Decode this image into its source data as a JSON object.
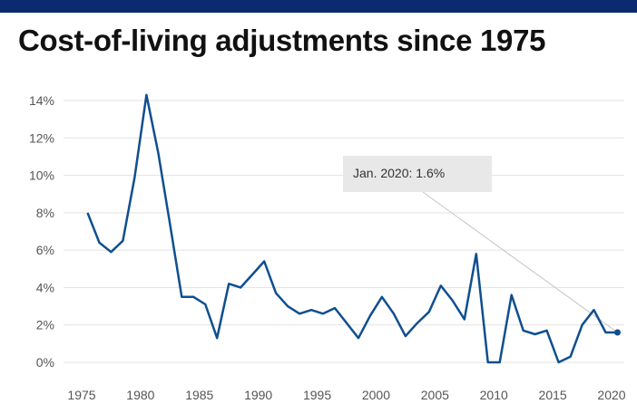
{
  "colors": {
    "top_bar": "#0c2b6e",
    "line": "#0f4f8f",
    "grid": "#e2e2e2",
    "annotation_bg": "#e8e8e8"
  },
  "chart_data": {
    "type": "line",
    "title": "Cost-of-living adjustments since 1975",
    "xlabel": "",
    "ylabel": "",
    "xlim": [
      1975,
      2021
    ],
    "ylim": [
      0,
      14
    ],
    "y_ticks": [
      0,
      2,
      4,
      6,
      8,
      10,
      12,
      14
    ],
    "y_tick_labels": [
      "0%",
      "2%",
      "4%",
      "6%",
      "8%",
      "10%",
      "12%",
      "14%"
    ],
    "x_ticks": [
      1975,
      1980,
      1985,
      1990,
      1995,
      2000,
      2005,
      2010,
      2015,
      2020
    ],
    "x_tick_labels": [
      "1975",
      "1980",
      "1985",
      "1990",
      "1995",
      "2000",
      "2005",
      "2010",
      "2015",
      "2020"
    ],
    "grid": "horizontal",
    "x": [
      1975.5,
      1976.5,
      1977.5,
      1978.5,
      1979.5,
      1980.5,
      1981.5,
      1982.5,
      1983.5,
      1984.5,
      1985.5,
      1986.5,
      1987.5,
      1988.5,
      1989.5,
      1990.5,
      1991.5,
      1992.5,
      1993.5,
      1994.5,
      1995.5,
      1996.5,
      1997.5,
      1998.5,
      1999.5,
      2000.5,
      2001.5,
      2002.5,
      2003.5,
      2004.5,
      2005.5,
      2006.5,
      2007.5,
      2008.5,
      2009.5,
      2010.5,
      2011.5,
      2012.5,
      2013.5,
      2014.5,
      2015.5,
      2016.5,
      2017.5,
      2018.5,
      2019.5,
      2020.5
    ],
    "values": [
      8.0,
      6.4,
      5.9,
      6.5,
      9.9,
      14.3,
      11.2,
      7.4,
      3.5,
      3.5,
      3.1,
      1.3,
      4.2,
      4.0,
      4.7,
      5.4,
      3.7,
      3.0,
      2.6,
      2.8,
      2.6,
      2.9,
      2.1,
      1.3,
      2.5,
      3.5,
      2.6,
      1.4,
      2.1,
      2.7,
      4.1,
      3.3,
      2.3,
      5.8,
      0.0,
      0.0,
      3.6,
      1.7,
      1.5,
      1.7,
      0.0,
      0.3,
      2.0,
      2.8,
      1.6,
      1.6
    ],
    "annotation": {
      "text": "Jan. 2020: 1.6%",
      "x": 2020.5,
      "y": 1.6
    }
  }
}
